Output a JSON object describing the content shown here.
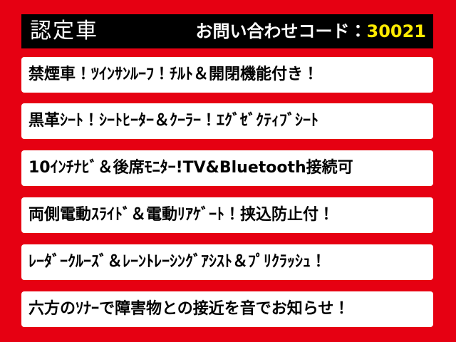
{
  "header": {
    "label": "認定車",
    "code_label": "お問い合わせコード：",
    "code": "30021"
  },
  "features": [
    "禁煙車！ﾂｲﾝｻﾝﾙｰﾌ！ﾁﾙﾄ＆開閉機能付き！",
    "黒革ｼｰﾄ！ｼｰﾄﾋｰﾀｰ＆ｸｰﾗｰ！ｴｸﾞｾﾞｸﾃｨﾌﾞｼｰﾄ",
    "10ｲﾝﾁﾅﾋﾞ＆後席ﾓﾆﾀｰ!TV&Bluetooth接続可",
    "両側電動ｽﾗｲﾄﾞ＆電動ﾘｱｹﾞｰﾄ！挟込防止付！",
    "ﾚｰﾀﾞｰｸﾙｰｽﾞ＆ﾚｰﾝﾄﾚｰｼﾝｸﾞｱｼｽﾄ＆ﾌﾟﾘｸﾗｯｼｭ！",
    "六方のｿﾅｰで障害物との接近を音でお知らせ！"
  ]
}
